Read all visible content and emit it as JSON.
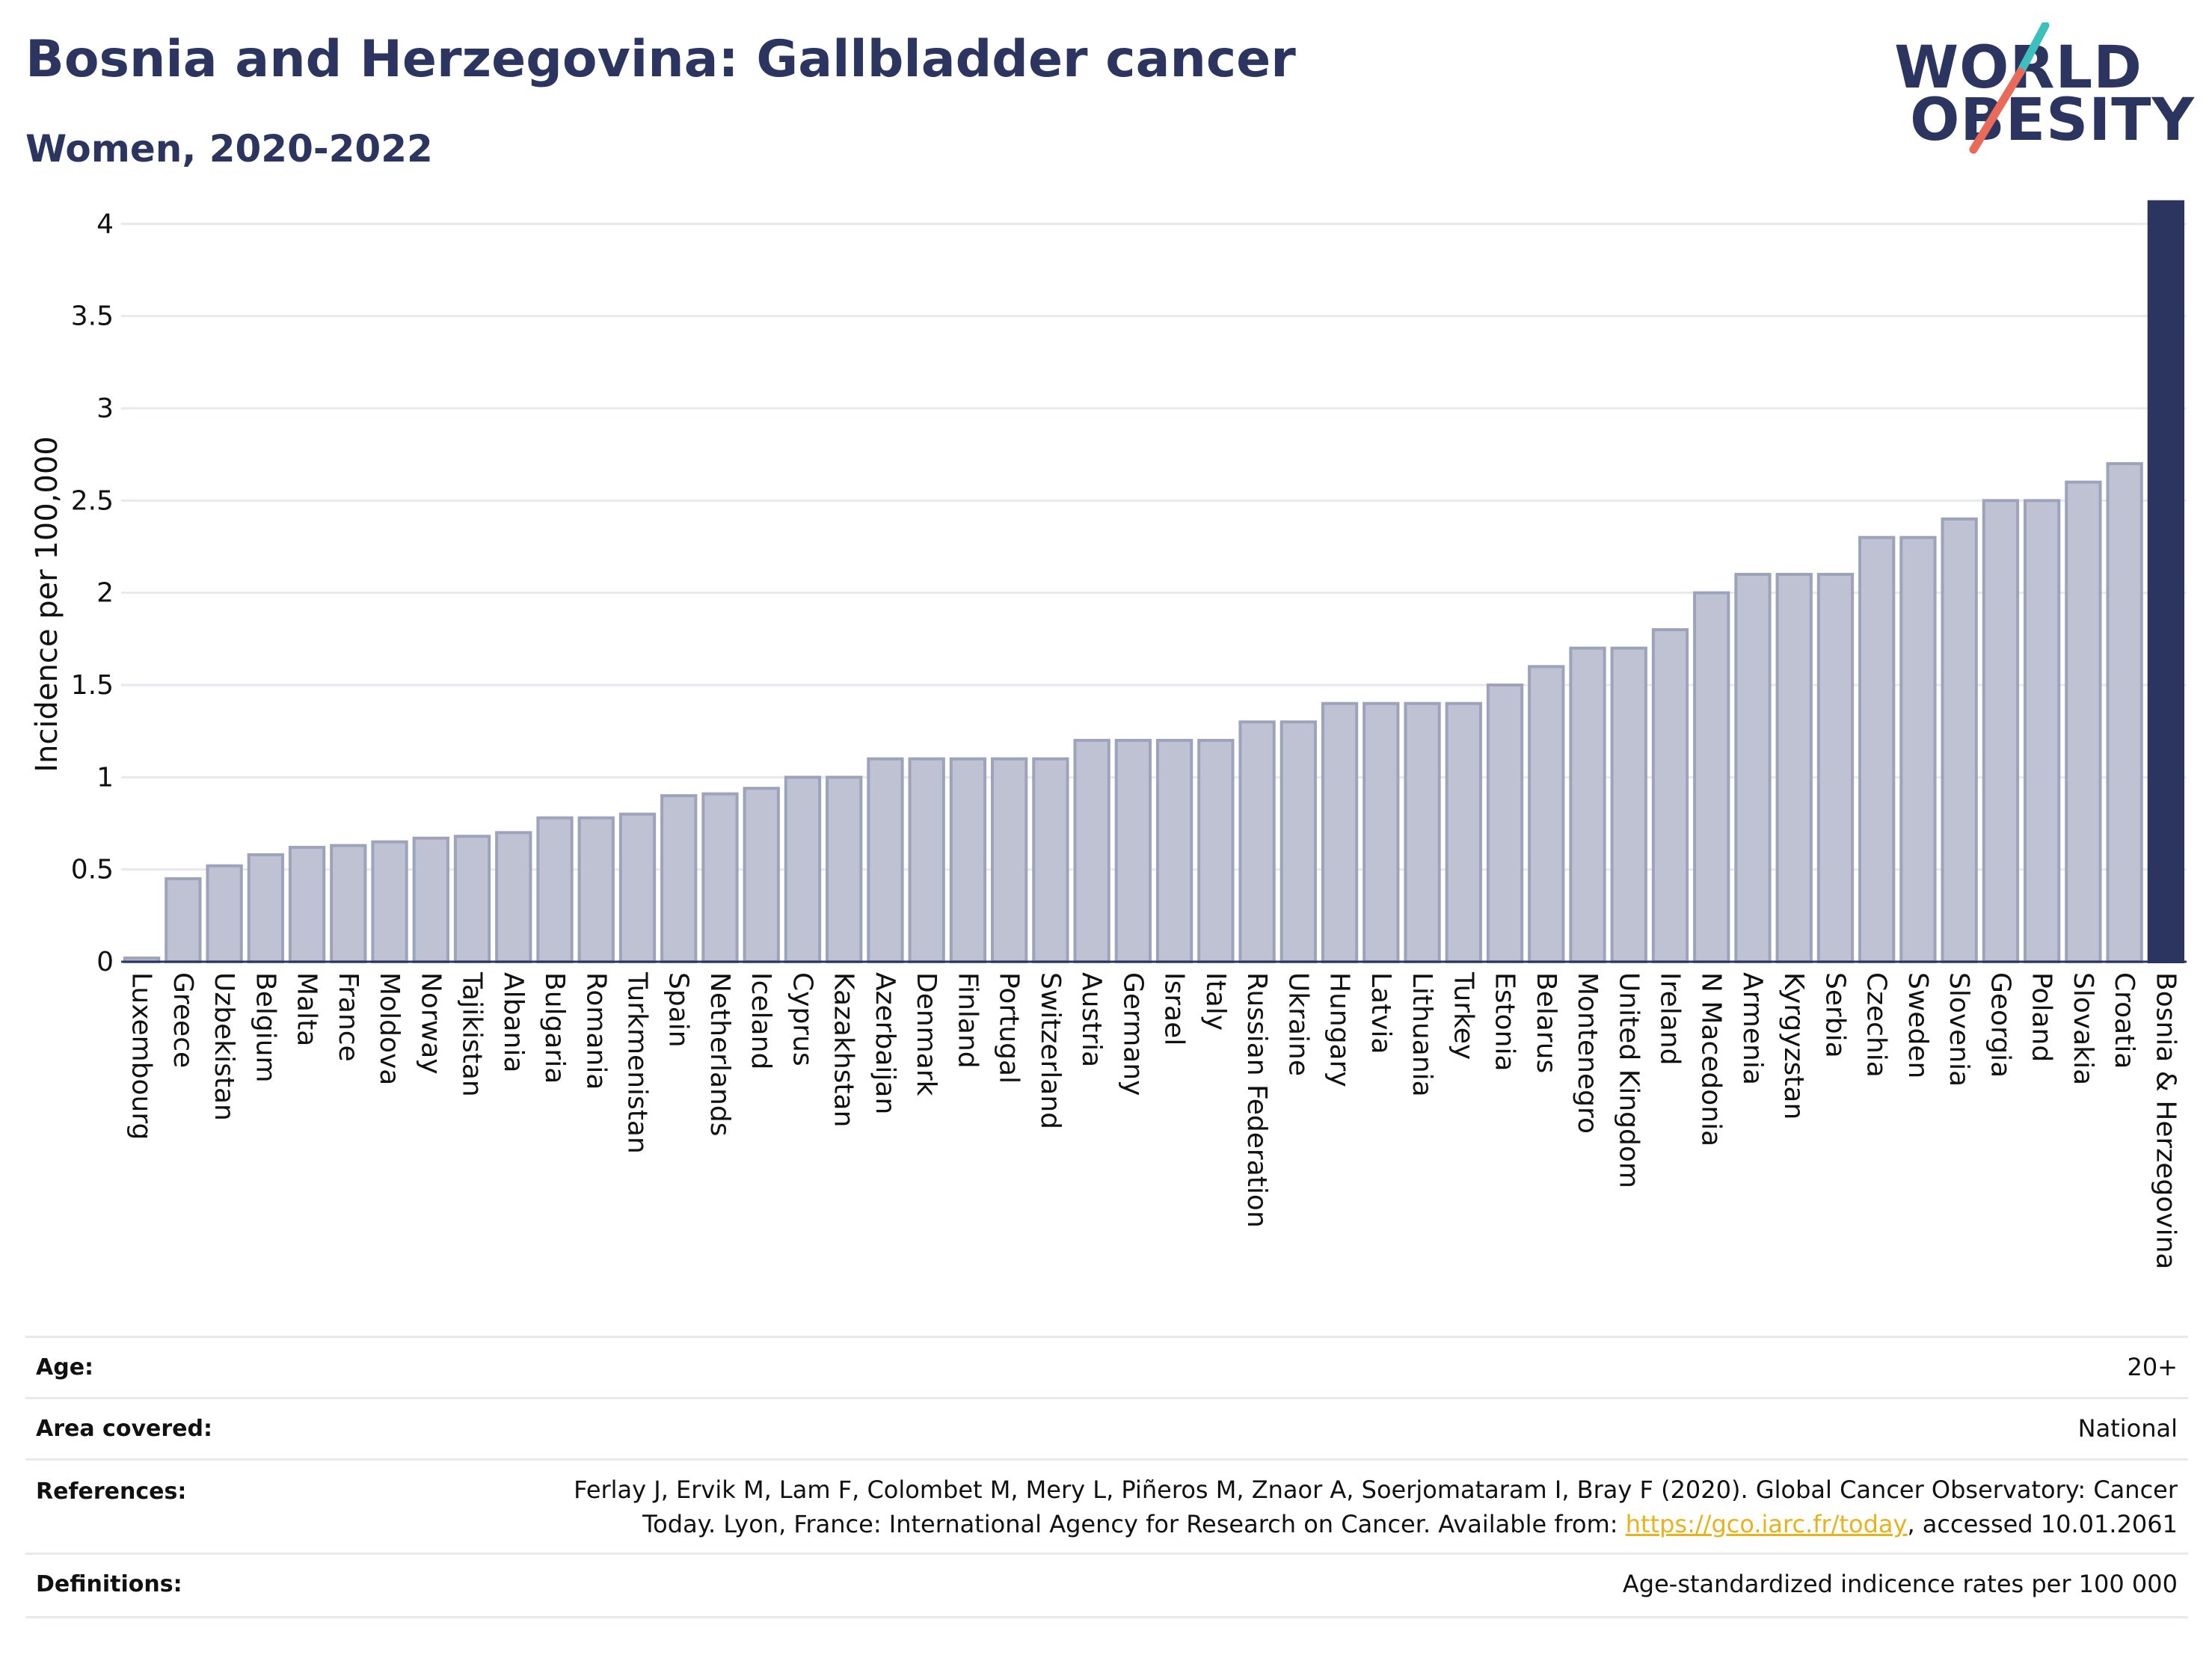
{
  "header": {
    "title": "Bosnia and Herzegovina: Gallbladder cancer",
    "subtitle": "Women, 2020-2022"
  },
  "logo": {
    "line1": "WORLD",
    "line2": "OBESITY",
    "colors": {
      "text": "#2b3560",
      "slash_top": "#3dbfbd",
      "slash_bottom": "#ea6a5a"
    }
  },
  "colors": {
    "bar_fill": "#bfc2d2",
    "bar_stroke": "#9ea3bc",
    "highlight": "#2b3560",
    "grid": "#e6eaee",
    "axis_text": "#111111"
  },
  "chart_data": {
    "type": "bar",
    "title": "Bosnia and Herzegovina: Gallbladder cancer",
    "subtitle": "Women, 2020-2022",
    "xlabel": "",
    "ylabel": "Incidence per 100,000",
    "ylim": [
      0,
      4.2
    ],
    "yticks": [
      0,
      0.5,
      1,
      1.5,
      2,
      2.5,
      3,
      3.5,
      4
    ],
    "ytick_labels": [
      "0",
      "0.5",
      "1",
      "1.5",
      "2",
      "2.5",
      "3",
      "3.5",
      "4"
    ],
    "grid": true,
    "highlight_category": "Bosnia & Herzegovina",
    "categories": [
      "Luxembourg",
      "Greece",
      "Uzbekistan",
      "Belgium",
      "Malta",
      "France",
      "Moldova",
      "Norway",
      "Tajikistan",
      "Albania",
      "Bulgaria",
      "Romania",
      "Turkmenistan",
      "Spain",
      "Netherlands",
      "Iceland",
      "Cyprus",
      "Kazakhstan",
      "Azerbaijan",
      "Denmark",
      "Finland",
      "Portugal",
      "Switzerland",
      "Austria",
      "Germany",
      "Israel",
      "Italy",
      "Russian Federation",
      "Ukraine",
      "Hungary",
      "Latvia",
      "Lithuania",
      "Turkey",
      "Estonia",
      "Belarus",
      "Montenegro",
      "United Kingdom",
      "Ireland",
      "N Macedonia",
      "Armenia",
      "Kyrgyzstan",
      "Serbia",
      "Czechia",
      "Sweden",
      "Slovenia",
      "Georgia",
      "Poland",
      "Slovakia",
      "Croatia",
      "Bosnia & Herzegovina"
    ],
    "values": [
      0.02,
      0.45,
      0.52,
      0.58,
      0.62,
      0.63,
      0.65,
      0.67,
      0.68,
      0.7,
      0.78,
      0.78,
      0.8,
      0.9,
      0.91,
      0.94,
      1.0,
      1.0,
      1.1,
      1.1,
      1.1,
      1.1,
      1.1,
      1.2,
      1.2,
      1.2,
      1.2,
      1.3,
      1.3,
      1.4,
      1.4,
      1.4,
      1.4,
      1.5,
      1.6,
      1.7,
      1.7,
      1.8,
      2.0,
      2.1,
      2.1,
      2.1,
      2.3,
      2.3,
      2.4,
      2.5,
      2.5,
      2.6,
      2.7,
      4.12
    ]
  },
  "info": {
    "age_label": "Age:",
    "age_value": "20+",
    "area_label": "Area covered:",
    "area_value": "National",
    "references_label": "References:",
    "references_line1": "Ferlay J, Ervik M, Lam F, Colombet M, Mery L, Piñeros M, Znaor A, Soerjomataram I, Bray F (2020). Global Cancer Observatory: Cancer",
    "references_line2_pre": "Today. Lyon, France: International Agency for Research on Cancer. Available from: ",
    "references_link": "https://gco.iarc.fr/today",
    "references_line2_post": ", accessed 10.01.2061",
    "definitions_label": "Definitions:",
    "definitions_value": "Age-standardized indicence rates per 100 000"
  }
}
